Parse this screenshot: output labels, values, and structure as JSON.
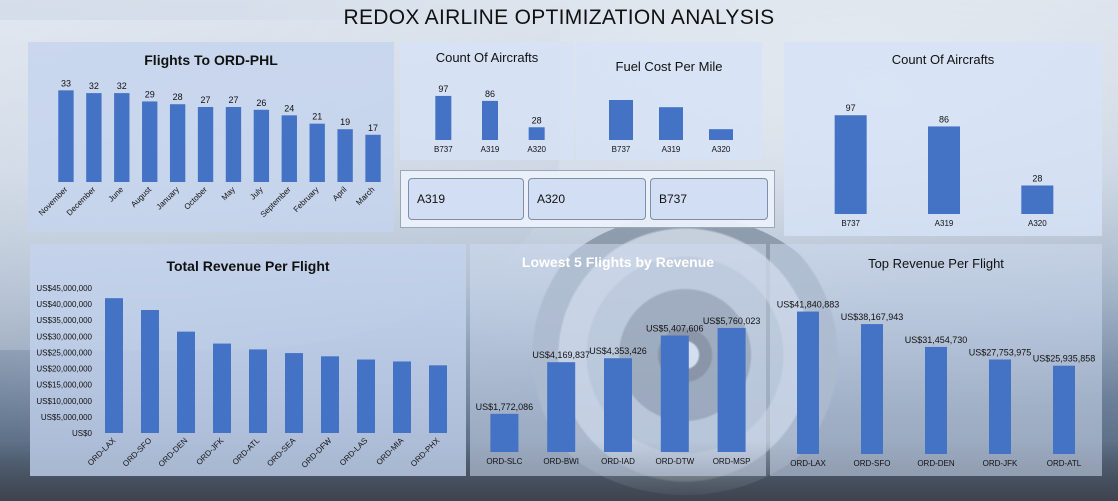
{
  "title": "REDOX AIRLINE OPTIMIZATION ANALYSIS",
  "slicer": {
    "items": [
      "A319",
      "A320",
      "B737"
    ]
  },
  "chart_data": [
    {
      "id": "flights_to_ord_phl",
      "type": "bar",
      "title": "Flights To ORD-PHL",
      "categories": [
        "November",
        "December",
        "June",
        "August",
        "January",
        "October",
        "May",
        "July",
        "September",
        "February",
        "April",
        "March"
      ],
      "values": [
        33,
        32,
        32,
        29,
        28,
        27,
        27,
        26,
        24,
        21,
        19,
        17
      ],
      "data_labels": [
        "33",
        "32",
        "32",
        "29",
        "28",
        "27",
        "27",
        "26",
        "24",
        "21",
        "19",
        "17"
      ],
      "ylim": [
        0,
        36
      ]
    },
    {
      "id": "count_of_aircrafts_small",
      "type": "bar",
      "title": "Count Of Aircrafts",
      "categories": [
        "B737",
        "A319",
        "A320"
      ],
      "values": [
        97,
        86,
        28
      ],
      "data_labels": [
        "97",
        "86",
        "28"
      ],
      "ylim": [
        0,
        110
      ]
    },
    {
      "id": "fuel_cost_per_mile",
      "type": "bar",
      "title": "Fuel Cost Per Mile",
      "categories": [
        "B737",
        "A319",
        "A320"
      ],
      "values": [
        1.0,
        0.82,
        0.27
      ],
      "ylim": [
        0,
        1.1
      ]
    },
    {
      "id": "count_of_aircrafts_large",
      "type": "bar",
      "title": "Count Of Aircrafts",
      "categories": [
        "B737",
        "A319",
        "A320"
      ],
      "values": [
        97,
        86,
        28
      ],
      "data_labels": [
        "97",
        "86",
        "28"
      ],
      "ylim": [
        0,
        110
      ]
    },
    {
      "id": "total_revenue_per_flight",
      "type": "bar",
      "title": "Total Revenue Per Flight",
      "categories": [
        "ORD-LAX",
        "ORD-SFO",
        "ORD-DEN",
        "ORD-JFK",
        "ORD-ATL",
        "ORD-SEA",
        "ORD-DFW",
        "ORD-LAS",
        "ORD-MIA",
        "ORD-PHX"
      ],
      "values": [
        41840883,
        38167943,
        31454730,
        27753975,
        25935858,
        24800000,
        23800000,
        22800000,
        22200000,
        21000000
      ],
      "yticks": [
        "US$0",
        "US$5,000,000",
        "US$10,000,000",
        "US$15,000,000",
        "US$20,000,000",
        "US$25,000,000",
        "US$30,000,000",
        "US$35,000,000",
        "US$40,000,000",
        "US$45,000,000"
      ],
      "ylim": [
        0,
        45000000
      ]
    },
    {
      "id": "lowest_5_flights_by_revenue",
      "type": "bar",
      "title": "Lowest 5 Flights by Revenue",
      "categories": [
        "ORD-SLC",
        "ORD-BWI",
        "ORD-IAD",
        "ORD-DTW",
        "ORD-MSP"
      ],
      "values": [
        1772086,
        4169837,
        4353426,
        5407606,
        5760023
      ],
      "data_labels": [
        "US$1,772,086",
        "US$4,169,837",
        "US$4,353,426",
        "US$5,407,606",
        "US$5,760,023"
      ],
      "ylim": [
        0,
        6500000
      ]
    },
    {
      "id": "top_revenue_per_flight",
      "type": "bar",
      "title": "Top Revenue Per Flight",
      "categories": [
        "ORD-LAX",
        "ORD-SFO",
        "ORD-DEN",
        "ORD-JFK",
        "ORD-ATL"
      ],
      "values": [
        41840883,
        38167943,
        31454730,
        27753975,
        25935858
      ],
      "data_labels": [
        "US$41,840,883",
        "US$38,167,943",
        "US$31,454,730",
        "US$27,753,975",
        "US$25,935,858"
      ],
      "ylim": [
        0,
        47000000
      ]
    }
  ]
}
